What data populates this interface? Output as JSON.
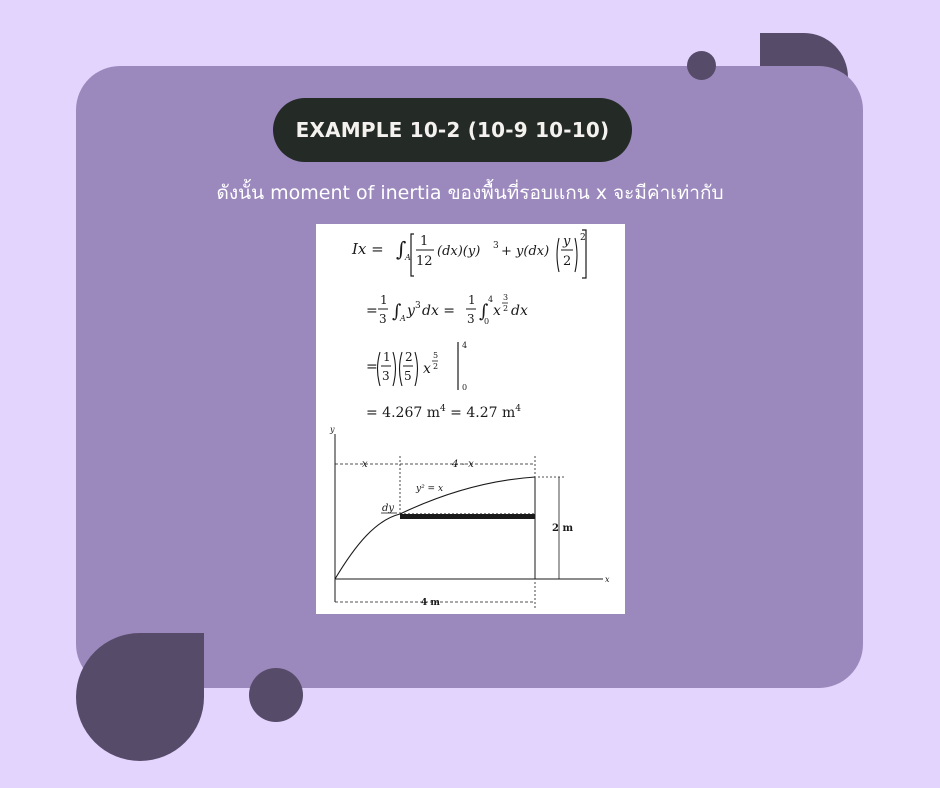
{
  "title": "EXAMPLE 10-2 (10-9 10-10)",
  "subtitle": "ดังนั้น moment of inertia ของพื้นที่รอบแกน x จะมีค่าเท่ากับ",
  "figure": {
    "equation": {
      "lhs": "Ix =",
      "line1_terms": [
        "1",
        "12",
        "(dx)(y)",
        "3",
        "+ y(dx)",
        "y",
        "2",
        "2"
      ],
      "line2_lead": "=",
      "line2_fraction": [
        "1",
        "3"
      ],
      "line2_middle": "y",
      "line2_middle_exp": "3",
      "line2_middle_tail": "dx =",
      "line2_fraction_b": [
        "1",
        "3"
      ],
      "line2_upper_limit": "4",
      "line2_lower_limit": "0",
      "line2_power_base": "x",
      "line2_power_exp": [
        "3",
        "2"
      ],
      "line2_tail": "dx",
      "line3_lead": "=",
      "line3_fraction_a": [
        "1",
        "3"
      ],
      "line3_fraction_b": [
        "2",
        "5"
      ],
      "line3_power_base": "x",
      "line3_power_exp": [
        "5",
        "2"
      ],
      "line3_upper_limit": "4",
      "line3_lower_limit": "0",
      "line4": "= 4.267 m",
      "line4_exp": "4",
      "line4_mid": " = 4.27 m",
      "line4_exp2": "4"
    },
    "diagram": {
      "y_axis_label": "y",
      "x_axis_label": "x",
      "dim_x_label": "x",
      "dim_4_minus_x": "4 - x",
      "curve_label": "y² = x",
      "strip_label": "dy",
      "height_label": "2 m",
      "width_label": "4 m"
    }
  },
  "colors": {
    "background": "#e2d4fd",
    "card": "#9b89bd",
    "decoration": "#574b6a",
    "pill": "#242a25"
  }
}
